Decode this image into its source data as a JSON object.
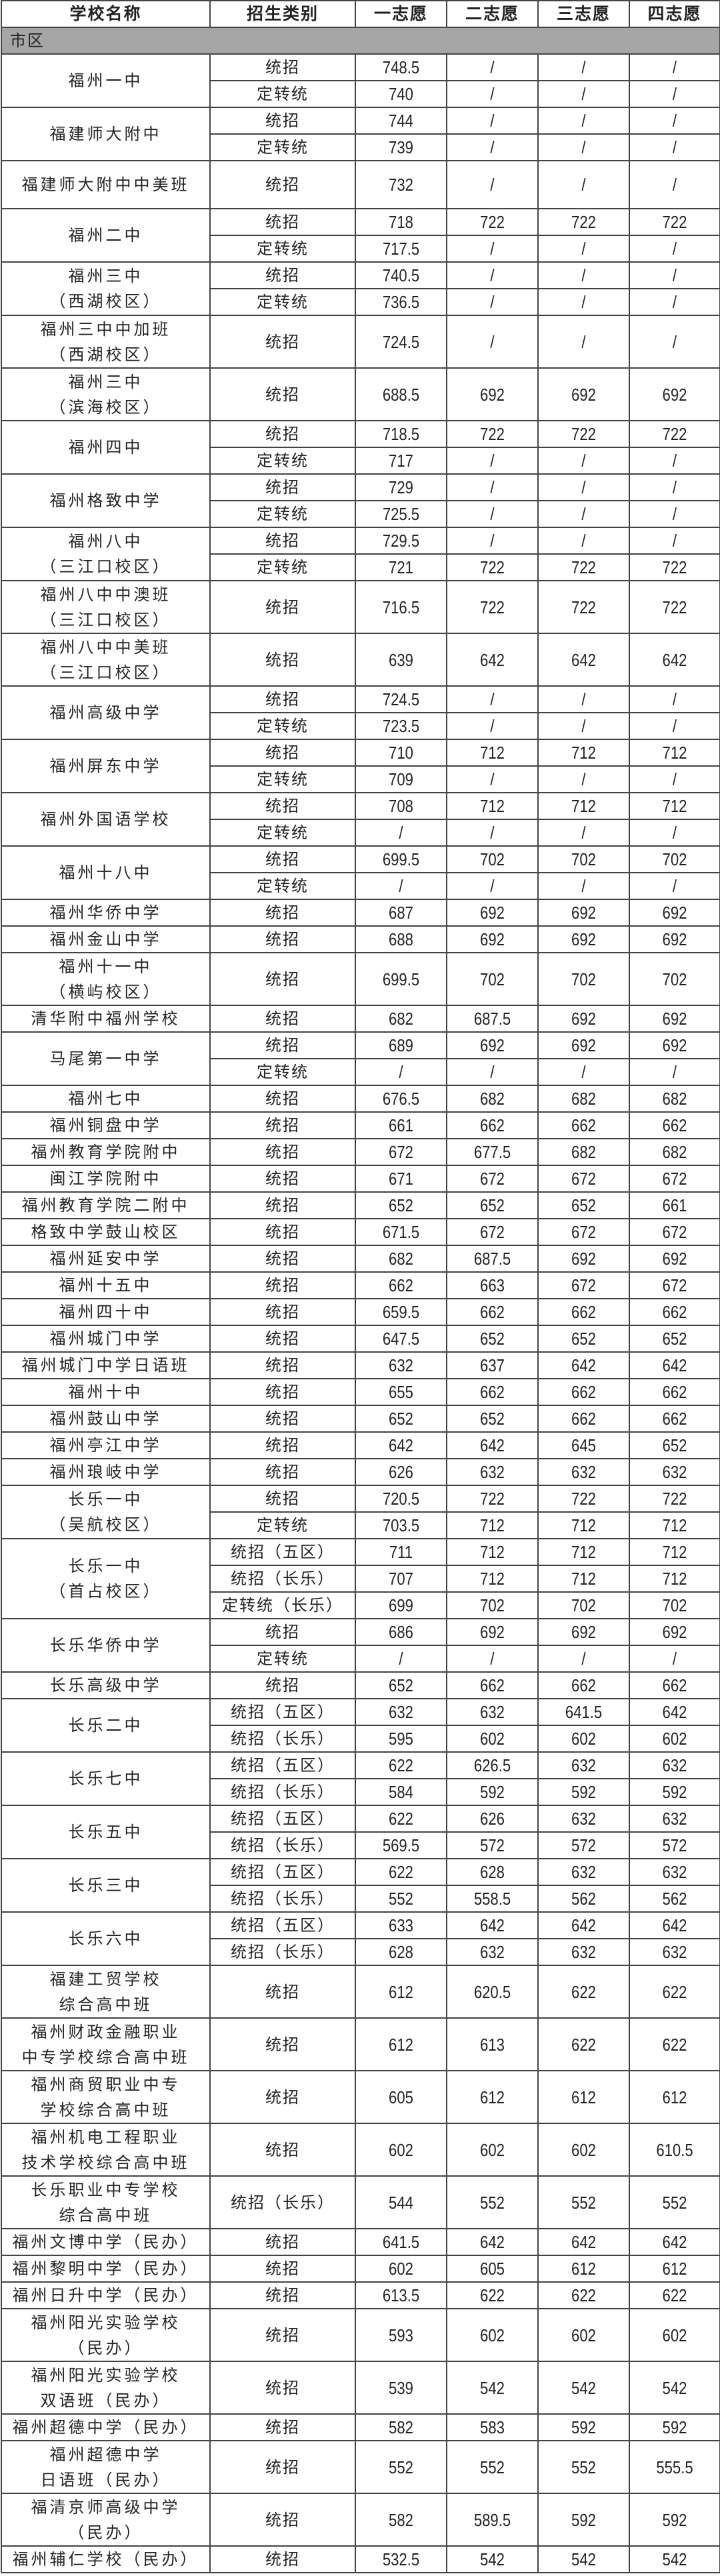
{
  "headers": [
    "学校名称",
    "招生类别",
    "一志愿",
    "二志愿",
    "三志愿",
    "四志愿"
  ],
  "region": "市区",
  "schools": [
    {
      "name": "福州一中",
      "rows": [
        {
          "type": "统招",
          "v": [
            "748.5",
            "/",
            "/",
            "/"
          ]
        },
        {
          "type": "定转统",
          "v": [
            "740",
            "/",
            "/",
            "/"
          ]
        }
      ]
    },
    {
      "name": "福建师大附中",
      "rows": [
        {
          "type": "统招",
          "v": [
            "744",
            "/",
            "/",
            "/"
          ]
        },
        {
          "type": "定转统",
          "v": [
            "739",
            "/",
            "/",
            "/"
          ]
        }
      ]
    },
    {
      "name": "福建师大附中中美班",
      "rows": [
        {
          "type": "统招",
          "v": [
            "732",
            "/",
            "/",
            "/"
          ]
        }
      ]
    },
    {
      "name": "福州二中",
      "rows": [
        {
          "type": "统招",
          "v": [
            "718",
            "722",
            "722",
            "722"
          ]
        },
        {
          "type": "定转统",
          "v": [
            "717.5",
            "/",
            "/",
            "/"
          ]
        }
      ]
    },
    {
      "name": "福州三中\n（西湖校区）",
      "rows": [
        {
          "type": "统招",
          "v": [
            "740.5",
            "/",
            "/",
            "/"
          ]
        },
        {
          "type": "定转统",
          "v": [
            "736.5",
            "/",
            "/",
            "/"
          ]
        }
      ]
    },
    {
      "name": "福州三中中加班\n（西湖校区）",
      "rows": [
        {
          "type": "统招",
          "v": [
            "724.5",
            "/",
            "/",
            "/"
          ]
        }
      ]
    },
    {
      "name": "福州三中\n（滨海校区）",
      "rows": [
        {
          "type": "统招",
          "v": [
            "688.5",
            "692",
            "692",
            "692"
          ]
        }
      ]
    },
    {
      "name": "福州四中",
      "rows": [
        {
          "type": "统招",
          "v": [
            "718.5",
            "722",
            "722",
            "722"
          ]
        },
        {
          "type": "定转统",
          "v": [
            "717",
            "/",
            "/",
            "/"
          ]
        }
      ]
    },
    {
      "name": "福州格致中学",
      "rows": [
        {
          "type": "统招",
          "v": [
            "729",
            "/",
            "/",
            "/"
          ]
        },
        {
          "type": "定转统",
          "v": [
            "725.5",
            "/",
            "/",
            "/"
          ]
        }
      ]
    },
    {
      "name": "福州八中\n（三江口校区）",
      "rows": [
        {
          "type": "统招",
          "v": [
            "729.5",
            "/",
            "/",
            "/"
          ]
        },
        {
          "type": "定转统",
          "v": [
            "721",
            "722",
            "722",
            "722"
          ]
        }
      ]
    },
    {
      "name": "福州八中中澳班\n（三江口校区）",
      "rows": [
        {
          "type": "统招",
          "v": [
            "716.5",
            "722",
            "722",
            "722"
          ]
        }
      ]
    },
    {
      "name": "福州八中中美班\n（三江口校区）",
      "rows": [
        {
          "type": "统招",
          "v": [
            "639",
            "642",
            "642",
            "642"
          ]
        }
      ]
    },
    {
      "name": "福州高级中学",
      "rows": [
        {
          "type": "统招",
          "v": [
            "724.5",
            "/",
            "/",
            "/"
          ]
        },
        {
          "type": "定转统",
          "v": [
            "723.5",
            "/",
            "/",
            "/"
          ]
        }
      ]
    },
    {
      "name": "福州屏东中学",
      "rows": [
        {
          "type": "统招",
          "v": [
            "710",
            "712",
            "712",
            "712"
          ]
        },
        {
          "type": "定转统",
          "v": [
            "709",
            "/",
            "/",
            "/"
          ]
        }
      ]
    },
    {
      "name": "福州外国语学校",
      "rows": [
        {
          "type": "统招",
          "v": [
            "708",
            "712",
            "712",
            "712"
          ]
        },
        {
          "type": "定转统",
          "v": [
            "/",
            "/",
            "/",
            "/"
          ]
        }
      ]
    },
    {
      "name": "福州十八中",
      "rows": [
        {
          "type": "统招",
          "v": [
            "699.5",
            "702",
            "702",
            "702"
          ]
        },
        {
          "type": "定转统",
          "v": [
            "/",
            "/",
            "/",
            "/"
          ]
        }
      ]
    },
    {
      "name": "福州华侨中学",
      "rows": [
        {
          "type": "统招",
          "v": [
            "687",
            "692",
            "692",
            "692"
          ]
        }
      ]
    },
    {
      "name": "福州金山中学",
      "rows": [
        {
          "type": "统招",
          "v": [
            "688",
            "692",
            "692",
            "692"
          ]
        }
      ]
    },
    {
      "name": "福州十一中\n（横屿校区）",
      "rows": [
        {
          "type": "统招",
          "v": [
            "699.5",
            "702",
            "702",
            "702"
          ]
        }
      ]
    },
    {
      "name": "清华附中福州学校",
      "rows": [
        {
          "type": "统招",
          "v": [
            "682",
            "687.5",
            "692",
            "692"
          ]
        }
      ]
    },
    {
      "name": "马尾第一中学",
      "rows": [
        {
          "type": "统招",
          "v": [
            "689",
            "692",
            "692",
            "692"
          ]
        },
        {
          "type": "定转统",
          "v": [
            "/",
            "/",
            "/",
            "/"
          ]
        }
      ]
    },
    {
      "name": "福州七中",
      "rows": [
        {
          "type": "统招",
          "v": [
            "676.5",
            "682",
            "682",
            "682"
          ]
        }
      ]
    },
    {
      "name": "福州铜盘中学",
      "rows": [
        {
          "type": "统招",
          "v": [
            "661",
            "662",
            "662",
            "662"
          ]
        }
      ]
    },
    {
      "name": "福州教育学院附中",
      "rows": [
        {
          "type": "统招",
          "v": [
            "672",
            "677.5",
            "682",
            "682"
          ]
        }
      ]
    },
    {
      "name": "闽江学院附中",
      "rows": [
        {
          "type": "统招",
          "v": [
            "671",
            "672",
            "672",
            "672"
          ]
        }
      ]
    },
    {
      "name": "福州教育学院二附中",
      "rows": [
        {
          "type": "统招",
          "v": [
            "652",
            "652",
            "652",
            "661"
          ]
        }
      ]
    },
    {
      "name": "格致中学鼓山校区",
      "rows": [
        {
          "type": "统招",
          "v": [
            "671.5",
            "672",
            "672",
            "672"
          ]
        }
      ]
    },
    {
      "name": "福州延安中学",
      "rows": [
        {
          "type": "统招",
          "v": [
            "682",
            "687.5",
            "692",
            "692"
          ]
        }
      ]
    },
    {
      "name": "福州十五中",
      "rows": [
        {
          "type": "统招",
          "v": [
            "662",
            "663",
            "672",
            "672"
          ]
        }
      ]
    },
    {
      "name": "福州四十中",
      "rows": [
        {
          "type": "统招",
          "v": [
            "659.5",
            "662",
            "662",
            "662"
          ]
        }
      ]
    },
    {
      "name": "福州城门中学",
      "rows": [
        {
          "type": "统招",
          "v": [
            "647.5",
            "652",
            "652",
            "652"
          ]
        }
      ]
    },
    {
      "name": "福州城门中学日语班",
      "rows": [
        {
          "type": "统招",
          "v": [
            "632",
            "637",
            "642",
            "642"
          ]
        }
      ]
    },
    {
      "name": "福州十中",
      "rows": [
        {
          "type": "统招",
          "v": [
            "655",
            "662",
            "662",
            "662"
          ]
        }
      ]
    },
    {
      "name": "福州鼓山中学",
      "rows": [
        {
          "type": "统招",
          "v": [
            "652",
            "652",
            "662",
            "662"
          ]
        }
      ]
    },
    {
      "name": "福州亭江中学",
      "rows": [
        {
          "type": "统招",
          "v": [
            "642",
            "642",
            "645",
            "652"
          ]
        }
      ]
    },
    {
      "name": "福州琅岐中学",
      "rows": [
        {
          "type": "统招",
          "v": [
            "626",
            "632",
            "632",
            "632"
          ]
        }
      ]
    },
    {
      "name": "长乐一中\n（吴航校区）",
      "rows": [
        {
          "type": "统招",
          "v": [
            "720.5",
            "722",
            "722",
            "722"
          ]
        },
        {
          "type": "定转统",
          "v": [
            "703.5",
            "712",
            "712",
            "712"
          ]
        }
      ]
    },
    {
      "name": "长乐一中\n（首占校区）",
      "rows": [
        {
          "type": "统招（五区）",
          "v": [
            "711",
            "712",
            "712",
            "712"
          ]
        },
        {
          "type": "统招（长乐）",
          "v": [
            "707",
            "712",
            "712",
            "712"
          ]
        },
        {
          "type": "定转统（长乐）",
          "v": [
            "699",
            "702",
            "702",
            "702"
          ]
        }
      ]
    },
    {
      "name": "长乐华侨中学",
      "rows": [
        {
          "type": "统招",
          "v": [
            "686",
            "692",
            "692",
            "692"
          ]
        },
        {
          "type": "定转统",
          "v": [
            "/",
            "/",
            "/",
            "/"
          ]
        }
      ]
    },
    {
      "name": "长乐高级中学",
      "rows": [
        {
          "type": "统招",
          "v": [
            "652",
            "662",
            "662",
            "662"
          ]
        }
      ]
    },
    {
      "name": "长乐二中",
      "rows": [
        {
          "type": "统招（五区）",
          "v": [
            "632",
            "632",
            "641.5",
            "642"
          ]
        },
        {
          "type": "统招（长乐）",
          "v": [
            "595",
            "602",
            "602",
            "602"
          ]
        }
      ]
    },
    {
      "name": "长乐七中",
      "rows": [
        {
          "type": "统招（五区）",
          "v": [
            "622",
            "626.5",
            "632",
            "632"
          ]
        },
        {
          "type": "统招（长乐）",
          "v": [
            "584",
            "592",
            "592",
            "592"
          ]
        }
      ]
    },
    {
      "name": "长乐五中",
      "rows": [
        {
          "type": "统招（五区）",
          "v": [
            "622",
            "626",
            "632",
            "632"
          ]
        },
        {
          "type": "统招（长乐）",
          "v": [
            "569.5",
            "572",
            "572",
            "572"
          ]
        }
      ]
    },
    {
      "name": "长乐三中",
      "rows": [
        {
          "type": "统招（五区）",
          "v": [
            "622",
            "628",
            "632",
            "632"
          ]
        },
        {
          "type": "统招（长乐）",
          "v": [
            "552",
            "558.5",
            "562",
            "562"
          ]
        }
      ]
    },
    {
      "name": "长乐六中",
      "rows": [
        {
          "type": "统招（五区）",
          "v": [
            "633",
            "642",
            "642",
            "642"
          ]
        },
        {
          "type": "统招（长乐）",
          "v": [
            "628",
            "632",
            "632",
            "632"
          ]
        }
      ]
    },
    {
      "name": "福建工贸学校\n综合高中班",
      "rows": [
        {
          "type": "统招",
          "v": [
            "612",
            "620.5",
            "622",
            "622"
          ]
        }
      ]
    },
    {
      "name": "福州财政金融职业\n中专学校综合高中班",
      "rows": [
        {
          "type": "统招",
          "v": [
            "612",
            "613",
            "622",
            "622"
          ]
        }
      ]
    },
    {
      "name": "福州商贸职业中专\n学校综合高中班",
      "rows": [
        {
          "type": "统招",
          "v": [
            "605",
            "612",
            "612",
            "612"
          ]
        }
      ]
    },
    {
      "name": "福州机电工程职业\n技术学校综合高中班",
      "rows": [
        {
          "type": "统招",
          "v": [
            "602",
            "602",
            "602",
            "610.5"
          ]
        }
      ]
    },
    {
      "name": "长乐职业中专学校\n综合高中班",
      "rows": [
        {
          "type": "统招（长乐）",
          "v": [
            "544",
            "552",
            "552",
            "552"
          ]
        }
      ]
    },
    {
      "name": "福州文博中学（民办）",
      "rows": [
        {
          "type": "统招",
          "v": [
            "641.5",
            "642",
            "642",
            "642"
          ]
        }
      ]
    },
    {
      "name": "福州黎明中学（民办）",
      "rows": [
        {
          "type": "统招",
          "v": [
            "602",
            "605",
            "612",
            "612"
          ]
        }
      ]
    },
    {
      "name": "福州日升中学（民办）",
      "rows": [
        {
          "type": "统招",
          "v": [
            "613.5",
            "622",
            "622",
            "622"
          ]
        }
      ]
    },
    {
      "name": "福州阳光实验学校\n（民办）",
      "rows": [
        {
          "type": "统招",
          "v": [
            "593",
            "602",
            "602",
            "602"
          ]
        }
      ]
    },
    {
      "name": "福州阳光实验学校\n双语班（民办）",
      "rows": [
        {
          "type": "统招",
          "v": [
            "539",
            "542",
            "542",
            "542"
          ]
        }
      ]
    },
    {
      "name": "福州超德中学（民办）",
      "rows": [
        {
          "type": "统招",
          "v": [
            "582",
            "583",
            "592",
            "592"
          ]
        }
      ]
    },
    {
      "name": "福州超德中学\n日语班（民办）",
      "rows": [
        {
          "type": "统招",
          "v": [
            "552",
            "552",
            "552",
            "555.5"
          ]
        }
      ]
    },
    {
      "name": "福清京师高级中学\n（民办）",
      "rows": [
        {
          "type": "统招",
          "v": [
            "582",
            "589.5",
            "592",
            "592"
          ]
        }
      ]
    },
    {
      "name": "福州辅仁学校（民办）",
      "rows": [
        {
          "type": "统招",
          "v": [
            "532.5",
            "542",
            "542",
            "542"
          ]
        }
      ]
    }
  ]
}
